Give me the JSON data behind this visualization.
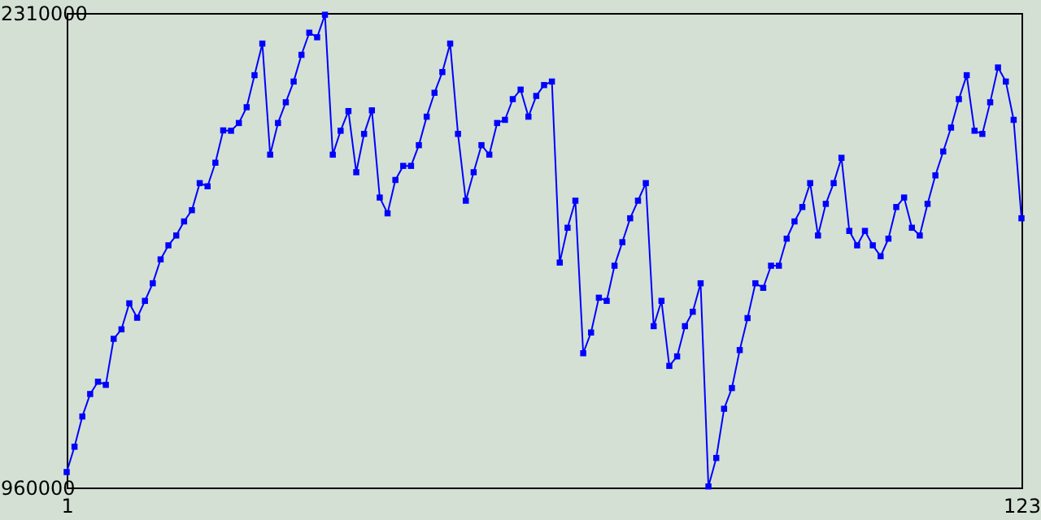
{
  "chart_data": {
    "type": "line",
    "x": [
      1,
      2,
      3,
      4,
      5,
      6,
      7,
      8,
      9,
      10,
      11,
      12,
      13,
      14,
      15,
      16,
      17,
      18,
      19,
      20,
      21,
      22,
      23,
      24,
      25,
      26,
      27,
      28,
      29,
      30,
      31,
      32,
      33,
      34,
      35,
      36,
      37,
      38,
      39,
      40,
      41,
      42,
      43,
      44,
      45,
      46,
      47,
      48,
      49,
      50,
      51,
      52,
      53,
      54,
      55,
      56,
      57,
      58,
      59,
      60,
      61,
      62,
      63,
      64,
      65,
      66,
      67,
      68,
      69,
      70,
      71,
      72,
      73,
      74,
      75,
      76,
      77,
      78,
      79,
      80,
      81,
      82,
      83,
      84,
      85,
      86,
      87,
      88,
      89,
      90,
      91,
      92,
      93,
      94,
      95,
      96,
      97,
      98,
      99,
      100,
      101,
      102,
      103,
      104,
      105,
      106,
      107,
      108,
      109,
      110,
      111,
      112,
      113,
      114,
      115,
      116,
      117,
      118,
      119,
      120,
      121,
      122,
      123
    ],
    "series": [
      {
        "color": "#0000ff",
        "values": [
          1004000,
          1076000,
          1162000,
          1226000,
          1261000,
          1252000,
          1383000,
          1410000,
          1484000,
          1443000,
          1491000,
          1541000,
          1609000,
          1649000,
          1677000,
          1717000,
          1749000,
          1826000,
          1817000,
          1884000,
          1976000,
          1975000,
          1997000,
          2042000,
          2133000,
          2223000,
          1907000,
          1997000,
          2056000,
          2115000,
          2191000,
          2254000,
          2241000,
          2305000,
          1907000,
          1975000,
          2031000,
          1857000,
          1966000,
          2033000,
          1785000,
          1740000,
          1835000,
          1875000,
          1875000,
          1934000,
          2015000,
          2083000,
          2142000,
          2223000,
          1966000,
          1776000,
          1857000,
          1934000,
          1907000,
          1997000,
          2006000,
          2065000,
          2092000,
          2015000,
          2074000,
          2105000,
          2115000,
          1600000,
          1699000,
          1776000,
          1342000,
          1401000,
          1500000,
          1491000,
          1591000,
          1658000,
          1726000,
          1776000,
          1826000,
          1419000,
          1491000,
          1306000,
          1333000,
          1419000,
          1460000,
          1541000,
          963000,
          1044000,
          1184000,
          1243000,
          1351000,
          1442000,
          1541000,
          1528000,
          1591000,
          1591000,
          1668000,
          1717000,
          1758000,
          1826000,
          1677000,
          1767000,
          1826000,
          1898000,
          1690000,
          1649000,
          1690000,
          1649000,
          1618000,
          1668000,
          1758000,
          1785000,
          1699000,
          1677000,
          1767000,
          1848000,
          1916000,
          1984000,
          2065000,
          2133000,
          1975000,
          1966000,
          2056000,
          2155000,
          2115000,
          2006000,
          1726000
        ]
      }
    ],
    "xlim": [
      1,
      123
    ],
    "xticks": [
      1,
      123
    ],
    "ylim": [
      960000,
      2310000
    ],
    "yticks": [
      960000,
      2310000
    ],
    "marker": "square",
    "grid": false,
    "line_style": "solid"
  }
}
